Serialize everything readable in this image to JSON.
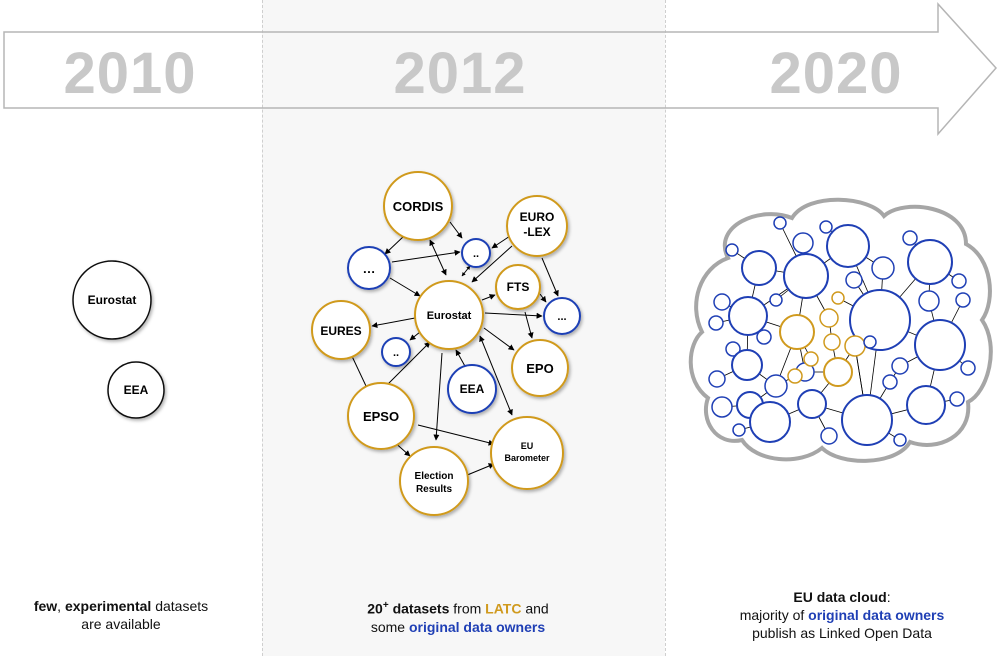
{
  "timeline": {
    "years": [
      "2010",
      "2012",
      "2020"
    ]
  },
  "panel_2010": {
    "nodes": [
      "Eurostat",
      "EEA"
    ],
    "caption": {
      "bold1": "few",
      "sep": ", ",
      "bold2": "experimental",
      "rest1": " datasets",
      "rest2": "are available"
    }
  },
  "panel_2012": {
    "nodes": {
      "cordis": "CORDIS",
      "eurolex1": "EURO",
      "eurolex2": "-LEX",
      "dots1": "…",
      "dots2": "..",
      "fts": "FTS",
      "dots3": "...",
      "eures": "EURES",
      "eurostat": "Eurostat",
      "dots4": "..",
      "epo": "EPO",
      "eea": "EEA",
      "epso": "EPSO",
      "eu1": "EU",
      "eu2": "Barometer",
      "election1": "Election",
      "election2": "Results"
    },
    "caption": {
      "num": "20",
      "sup": "+",
      "bold": " datasets",
      "from": " from ",
      "latc": "LATC",
      "and": " and",
      "some": "some ",
      "owners": "original data owners"
    }
  },
  "panel_2020": {
    "caption": {
      "title": "EU data cloud",
      "colon": ":",
      "majority": "majority of ",
      "owners": "original data owners",
      "publish": "publish as Linked Open Data"
    }
  },
  "colors": {
    "gold": "#d09a1e",
    "blue": "#1f3fb5",
    "year_gray": "#c8c8c8",
    "arrow_gray": "#b5b5b5"
  }
}
